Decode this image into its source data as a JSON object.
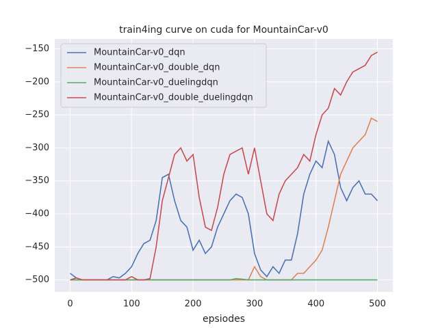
{
  "chart_data": {
    "type": "line",
    "title": "train4ing curve on cuda for MountainCar-v0",
    "x_label": "epsiodes",
    "x": [
      0,
      10,
      20,
      30,
      40,
      50,
      60,
      70,
      80,
      90,
      100,
      110,
      120,
      130,
      140,
      150,
      160,
      170,
      180,
      190,
      200,
      210,
      220,
      230,
      240,
      250,
      260,
      270,
      280,
      290,
      300,
      310,
      320,
      330,
      340,
      350,
      360,
      370,
      380,
      390,
      400,
      410,
      420,
      430,
      440,
      450,
      460,
      470,
      480,
      490,
      500
    ],
    "series": [
      {
        "name": "MountainCar-v0_dqn",
        "color": "#4c72b0",
        "values": [
          -490,
          -497,
          -500,
          -500,
          -500,
          -500,
          -500,
          -495,
          -497,
          -490,
          -480,
          -460,
          -445,
          -440,
          -410,
          -345,
          -340,
          -380,
          -410,
          -420,
          -455,
          -440,
          -460,
          -450,
          -420,
          -400,
          -380,
          -370,
          -375,
          -400,
          -460,
          -485,
          -495,
          -480,
          -490,
          -470,
          -470,
          -430,
          -370,
          -340,
          -320,
          -330,
          -290,
          -310,
          -360,
          -380,
          -360,
          -350,
          -370,
          -370,
          -380
        ]
      },
      {
        "name": "MountainCar-v0_double_dqn",
        "color": "#dd8452",
        "values": [
          -500,
          -500,
          -500,
          -500,
          -500,
          -500,
          -500,
          -500,
          -500,
          -500,
          -500,
          -500,
          -500,
          -500,
          -500,
          -500,
          -500,
          -500,
          -500,
          -500,
          -500,
          -500,
          -500,
          -500,
          -500,
          -500,
          -500,
          -500,
          -500,
          -500,
          -480,
          -495,
          -500,
          -500,
          -500,
          -500,
          -500,
          -490,
          -490,
          -480,
          -470,
          -455,
          -420,
          -380,
          -340,
          -320,
          -300,
          -290,
          -280,
          -255,
          -260
        ]
      },
      {
        "name": "MountainCar-v0_duelingdqn",
        "color": "#55a868",
        "values": [
          -500,
          -500,
          -500,
          -500,
          -500,
          -500,
          -500,
          -500,
          -500,
          -500,
          -500,
          -500,
          -500,
          -500,
          -500,
          -500,
          -500,
          -500,
          -500,
          -500,
          -500,
          -500,
          -500,
          -500,
          -500,
          -500,
          -500,
          -498,
          -499,
          -500,
          -500,
          -500,
          -500,
          -500,
          -500,
          -500,
          -500,
          -500,
          -500,
          -500,
          -500,
          -500,
          -500,
          -500,
          -500,
          -500,
          -500,
          -500,
          -500,
          -500,
          -500
        ]
      },
      {
        "name": "MountainCar-v0_double_duelingdqn",
        "color": "#c44e52",
        "values": [
          -500,
          -497,
          -500,
          -500,
          -500,
          -500,
          -500,
          -500,
          -500,
          -500,
          -495,
          -500,
          -500,
          -498,
          -450,
          -380,
          -345,
          -310,
          -300,
          -320,
          -310,
          -375,
          -420,
          -425,
          -390,
          -340,
          -310,
          -305,
          -300,
          -340,
          -300,
          -350,
          -400,
          -410,
          -370,
          -350,
          -340,
          -330,
          -310,
          -320,
          -280,
          -250,
          -240,
          -210,
          -220,
          -200,
          -185,
          -180,
          -175,
          -160,
          -155
        ]
      }
    ],
    "xlim": [
      -25,
      525
    ],
    "ylim": [
      -518,
      -135
    ],
    "xticks": [
      0,
      100,
      200,
      300,
      400,
      500
    ],
    "yticks": [
      {
        "value": -500,
        "label": "−500"
      },
      {
        "value": -450,
        "label": "−450"
      },
      {
        "value": -400,
        "label": "−400"
      },
      {
        "value": -350,
        "label": "−350"
      },
      {
        "value": -300,
        "label": "−300"
      },
      {
        "value": -250,
        "label": "−250"
      },
      {
        "value": -200,
        "label": "−200"
      },
      {
        "value": -150,
        "label": "−150"
      }
    ],
    "grid": true,
    "legend": "upper left"
  }
}
